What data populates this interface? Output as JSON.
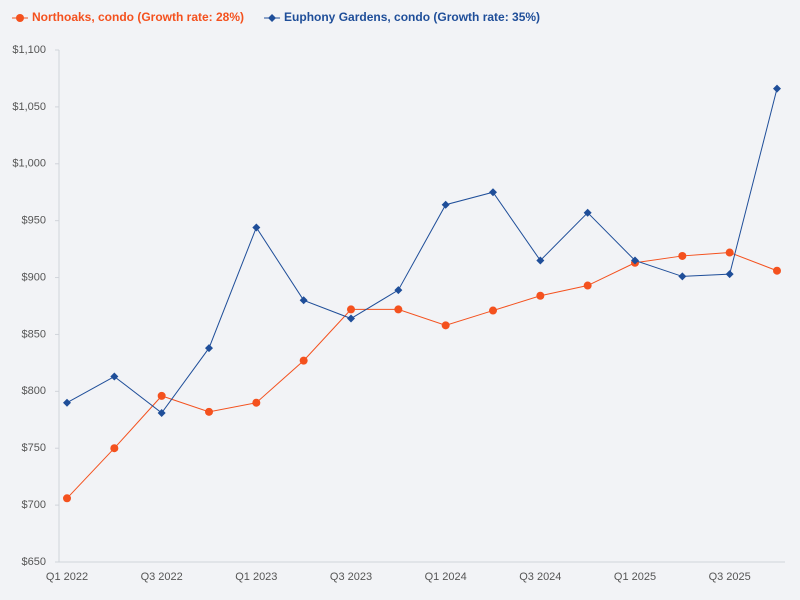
{
  "chart_data": {
    "type": "line",
    "categories": [
      "Q1 2022",
      null,
      "Q3 2022",
      null,
      "Q1 2023",
      null,
      "Q3 2023",
      null,
      "Q1 2024",
      null,
      "Q3 2024",
      null,
      "Q1 2025",
      null,
      "Q3 2025",
      null
    ],
    "series": [
      {
        "name": "Northoaks, condo (Growth rate: 28%)",
        "color": "#f4511e",
        "marker": "circle",
        "values": [
          706,
          750,
          796,
          782,
          790,
          827,
          872,
          872,
          858,
          871,
          884,
          893,
          913,
          919,
          922,
          906
        ]
      },
      {
        "name": "Euphony Gardens, condo (Growth rate: 35%)",
        "color": "#1f4e99",
        "marker": "diamond",
        "values": [
          790,
          813,
          781,
          838,
          944,
          880,
          864,
          889,
          964,
          975,
          915,
          957,
          915,
          901,
          903,
          1066
        ]
      }
    ],
    "ylim": [
      650,
      1100
    ],
    "yticks": [
      {
        "value": 650,
        "label": "$650"
      },
      {
        "value": 700,
        "label": "$700"
      },
      {
        "value": 750,
        "label": "$750"
      },
      {
        "value": 800,
        "label": "$800"
      },
      {
        "value": 850,
        "label": "$850"
      },
      {
        "value": 900,
        "label": "$900"
      },
      {
        "value": 950,
        "label": "$950"
      },
      {
        "value": 1000,
        "label": "$1,000"
      },
      {
        "value": 1050,
        "label": "$1,050"
      },
      {
        "value": 1100,
        "label": "$1,100"
      }
    ],
    "grid": false
  }
}
